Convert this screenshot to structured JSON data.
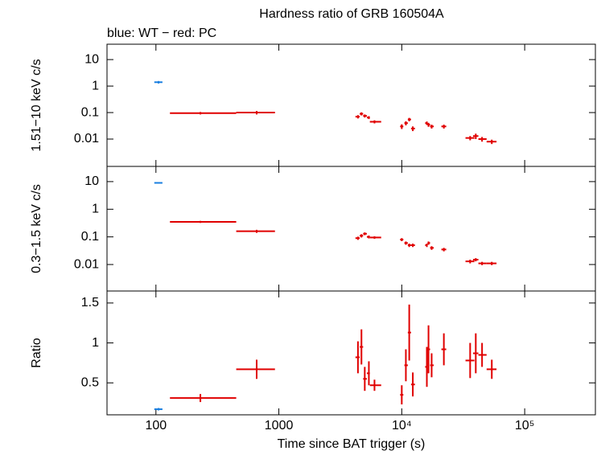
{
  "chart_data": [
    {
      "type": "errorbar",
      "title": "Hardness ratio of GRB 160504A",
      "subtitle": "blue: WT − red: PC",
      "y_label": "1.51−10 keV c/s",
      "xlog": true,
      "ylog": true,
      "xlim": [
        40,
        376000
      ],
      "ylim": [
        0.00093,
        38
      ],
      "yticks": [
        10,
        1,
        0.1,
        0.01
      ],
      "series": [
        {
          "color": "#1a7fe0",
          "x": [
            105
          ],
          "x_low": [
            97
          ],
          "x_high": [
            113
          ],
          "values": [
            1.4
          ],
          "errors": [
            0.15
          ]
        },
        {
          "color": "#e00000",
          "x": [
            230,
            660,
            4400,
            4700,
            5000,
            5400,
            6000,
            10000,
            10800,
            11500,
            12300,
            16000,
            16500,
            17500,
            22000,
            36000,
            40000,
            45000,
            54000
          ],
          "x_low": [
            130,
            450,
            4200,
            4550,
            4850,
            5200,
            5500,
            9700,
            10500,
            11200,
            11900,
            15500,
            16200,
            17000,
            21000,
            33000,
            38000,
            42000,
            49000
          ],
          "x_high": [
            450,
            930,
            4550,
            4850,
            5200,
            5500,
            6800,
            10300,
            11200,
            11900,
            12800,
            16200,
            17000,
            18200,
            23000,
            39000,
            42000,
            49000,
            59000
          ],
          "values": [
            0.095,
            0.1,
            0.07,
            0.09,
            0.075,
            0.065,
            0.045,
            0.03,
            0.04,
            0.055,
            0.025,
            0.04,
            0.035,
            0.03,
            0.03,
            0.011,
            0.013,
            0.01,
            0.008
          ],
          "errors": [
            0.01,
            0.015,
            0.01,
            0.012,
            0.01,
            0.008,
            0.006,
            0.006,
            0.007,
            0.008,
            0.005,
            0.006,
            0.006,
            0.005,
            0.005,
            0.002,
            0.003,
            0.002,
            0.0015
          ]
        }
      ]
    },
    {
      "type": "errorbar",
      "y_label": "0.3−1.5 keV c/s",
      "xlog": true,
      "ylog": true,
      "xlim": [
        40,
        376000
      ],
      "ylim": [
        0.0011,
        35.5
      ],
      "yticks": [
        10,
        1,
        0.1,
        0.01
      ],
      "series": [
        {
          "color": "#1a7fe0",
          "x": [
            105
          ],
          "x_low": [
            97
          ],
          "x_high": [
            113
          ],
          "values": [
            9
          ],
          "errors": [
            0.5
          ]
        },
        {
          "color": "#e00000",
          "x": [
            230,
            660,
            4400,
            4700,
            5000,
            5400,
            6000,
            10000,
            10800,
            11500,
            12300,
            16000,
            16500,
            17500,
            22000,
            36000,
            40000,
            45000,
            54000
          ],
          "x_low": [
            130,
            450,
            4200,
            4550,
            4850,
            5200,
            5500,
            9700,
            10500,
            11200,
            11900,
            15500,
            16200,
            17000,
            21000,
            33000,
            38000,
            42000,
            49000
          ],
          "x_high": [
            450,
            930,
            4550,
            4850,
            5200,
            5500,
            6800,
            10300,
            11200,
            11900,
            12800,
            16200,
            17000,
            18200,
            23000,
            39000,
            42000,
            49000,
            59000
          ],
          "values": [
            0.35,
            0.16,
            0.09,
            0.11,
            0.13,
            0.1,
            0.095,
            0.08,
            0.06,
            0.05,
            0.05,
            0.05,
            0.06,
            0.04,
            0.035,
            0.013,
            0.015,
            0.011,
            0.011
          ],
          "errors": [
            0.03,
            0.02,
            0.012,
            0.015,
            0.015,
            0.012,
            0.01,
            0.01,
            0.008,
            0.007,
            0.007,
            0.007,
            0.008,
            0.006,
            0.005,
            0.002,
            0.002,
            0.0015,
            0.0015
          ]
        }
      ]
    },
    {
      "type": "errorbar",
      "y_label": "Ratio",
      "x_label": "Time since BAT trigger (s)",
      "xlog": true,
      "ylog": false,
      "xlim": [
        40,
        376000
      ],
      "ylim": [
        0.1,
        1.65
      ],
      "yticks": [
        0.5,
        1,
        1.5
      ],
      "xticks": [
        100,
        1000,
        {
          "value": 10000,
          "label": "10⁴"
        },
        {
          "value": 100000,
          "label": "10⁵"
        }
      ],
      "series": [
        {
          "color": "#1a7fe0",
          "x": [
            105
          ],
          "x_low": [
            97
          ],
          "x_high": [
            113
          ],
          "values": [
            0.17
          ],
          "errors": [
            0.015
          ]
        },
        {
          "color": "#e00000",
          "x": [
            230,
            660,
            4400,
            4700,
            5000,
            5400,
            6000,
            10000,
            10800,
            11500,
            12300,
            16000,
            16500,
            17500,
            22000,
            36000,
            40000,
            45000,
            54000
          ],
          "x_low": [
            130,
            450,
            4200,
            4550,
            4850,
            5200,
            5500,
            9700,
            10500,
            11200,
            11900,
            15500,
            16200,
            17000,
            21000,
            33000,
            38000,
            42000,
            49000
          ],
          "x_high": [
            450,
            930,
            4550,
            4850,
            5200,
            5500,
            6800,
            10300,
            11200,
            11900,
            12800,
            16200,
            17000,
            18200,
            23000,
            39000,
            42000,
            49000,
            59000
          ],
          "values": [
            0.31,
            0.67,
            0.82,
            0.95,
            0.55,
            0.62,
            0.47,
            0.35,
            0.72,
            1.13,
            0.48,
            0.7,
            0.92,
            0.72,
            0.92,
            0.78,
            0.87,
            0.85,
            0.67
          ],
          "errors": [
            0.05,
            0.12,
            0.2,
            0.22,
            0.15,
            0.15,
            0.07,
            0.12,
            0.2,
            0.35,
            0.15,
            0.25,
            0.3,
            0.15,
            0.2,
            0.22,
            0.25,
            0.15,
            0.12
          ]
        }
      ]
    }
  ]
}
